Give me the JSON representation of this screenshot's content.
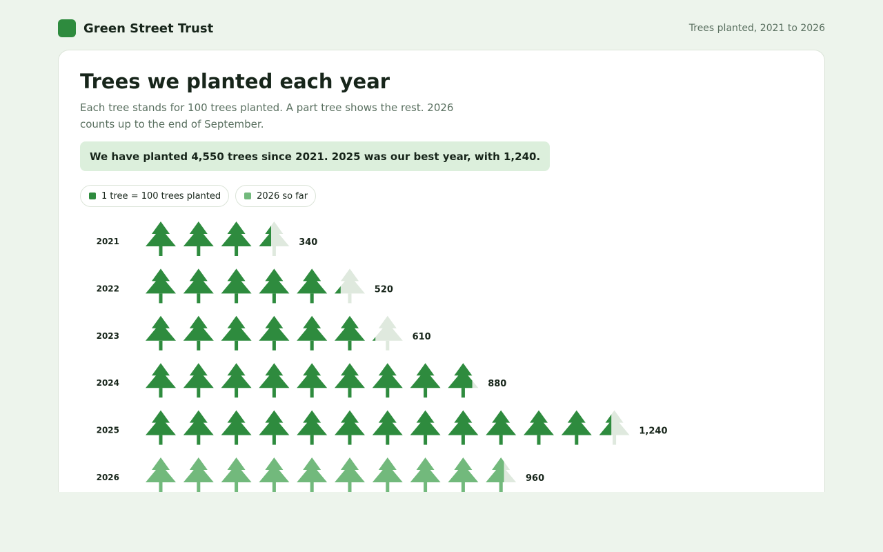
{
  "header": {
    "brand_name": "Green Street Trust",
    "caption": "Trees planted, 2021 to 2026"
  },
  "page": {
    "title": "Trees we planted each year",
    "subtitle": "Each tree stands for 100 trees planted. A part tree shows the rest. 2026 counts up to the end of September.",
    "callout": "We have planted 4,550 trees since 2021. 2025 was our best year, with 1,240."
  },
  "legend": {
    "unit_label": "1 tree = 100 trees planted",
    "partial_label": "2026 so far"
  },
  "colors": {
    "brand": "#2e8b3e",
    "full_year": "#2e8b3e",
    "partial_year": "#72b97c",
    "empty_tree": "#dfe9de",
    "callout_bg": "#dcefdc"
  },
  "chart_data": {
    "type": "pictogram",
    "unit": 100,
    "categories": [
      "2021",
      "2022",
      "2023",
      "2024",
      "2025",
      "2026"
    ],
    "values": [
      340,
      520,
      610,
      880,
      1240,
      960
    ],
    "value_labels": [
      "340",
      "520",
      "610",
      "880",
      "1,240",
      "960"
    ],
    "partial_year": "2026"
  }
}
